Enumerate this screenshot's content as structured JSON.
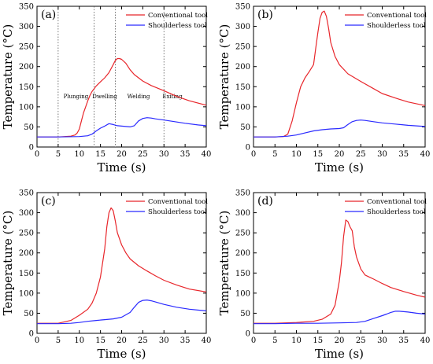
{
  "chart_data": [
    {
      "type": "line",
      "panel_label": "(a)",
      "xlabel": "Time (s)",
      "ylabel": "Temperature (°C)",
      "xlim": [
        0,
        40
      ],
      "ylim": [
        0,
        350
      ],
      "xticks": [
        0,
        5,
        10,
        15,
        20,
        25,
        30,
        35,
        40
      ],
      "yticks": [
        0,
        50,
        100,
        150,
        200,
        250,
        300,
        350
      ],
      "legend_position": "top-right",
      "phase_lines": [
        5,
        13.5,
        18.5,
        30
      ],
      "phases": [
        {
          "label": "Plunging",
          "x": 9.2,
          "y": 125
        },
        {
          "label": "Dwelling",
          "x": 16,
          "y": 125
        },
        {
          "label": "Welding",
          "x": 24,
          "y": 125
        },
        {
          "label": "Exiting",
          "x": 32,
          "y": 125
        }
      ],
      "series": [
        {
          "name": "Conventional tool",
          "color": "#e8262b",
          "x": [
            0,
            5,
            8,
            9,
            9.5,
            10,
            10.5,
            11,
            11.5,
            12,
            12.5,
            13,
            13.5,
            14,
            15,
            16,
            17,
            18,
            18.5,
            19,
            19.5,
            20,
            21,
            22,
            23,
            25,
            27,
            30,
            33,
            36,
            40
          ],
          "y": [
            25,
            25,
            27,
            30,
            35,
            45,
            65,
            85,
            100,
            115,
            128,
            138,
            145,
            152,
            162,
            172,
            185,
            205,
            215,
            220,
            220,
            218,
            208,
            192,
            180,
            164,
            153,
            140,
            126,
            115,
            104
          ]
        },
        {
          "name": "Shoulderless tool",
          "color": "#2a2aff",
          "x": [
            0,
            5,
            10,
            12,
            13,
            14,
            15,
            16,
            17,
            18,
            19,
            20,
            21,
            22,
            23,
            24,
            25,
            26,
            27,
            28,
            30,
            32,
            35,
            38,
            40
          ],
          "y": [
            25,
            25,
            26,
            28,
            32,
            40,
            47,
            52,
            58,
            56,
            53,
            52,
            51,
            50,
            53,
            65,
            71,
            73,
            72,
            70,
            67,
            64,
            59,
            55,
            53
          ]
        }
      ]
    },
    {
      "type": "line",
      "panel_label": "(b)",
      "xlabel": "Time (s)",
      "ylabel": "Temperature (°C)",
      "xlim": [
        0,
        40
      ],
      "ylim": [
        0,
        350
      ],
      "xticks": [
        0,
        5,
        10,
        15,
        20,
        25,
        30,
        35,
        40
      ],
      "yticks": [
        0,
        50,
        100,
        150,
        200,
        250,
        300,
        350
      ],
      "legend_position": "top-right",
      "series": [
        {
          "name": "Conventional tool",
          "color": "#e8262b",
          "x": [
            0,
            5,
            7,
            8,
            9,
            10,
            11,
            12,
            13,
            14,
            14.5,
            15,
            15.5,
            16,
            16.5,
            17,
            17.5,
            18,
            19,
            20,
            22,
            25,
            28,
            30,
            33,
            36,
            40
          ],
          "y": [
            25,
            25,
            26,
            32,
            65,
            110,
            150,
            172,
            188,
            205,
            245,
            285,
            320,
            335,
            338,
            325,
            295,
            260,
            225,
            205,
            182,
            163,
            145,
            133,
            122,
            112,
            103
          ]
        },
        {
          "name": "Shoulderless tool",
          "color": "#2a2aff",
          "x": [
            0,
            5,
            8,
            10,
            12,
            14,
            16,
            18,
            20,
            21,
            22,
            23,
            24,
            25,
            26,
            28,
            30,
            33,
            36,
            40
          ],
          "y": [
            25,
            25,
            27,
            30,
            35,
            40,
            43,
            45,
            46,
            48,
            56,
            63,
            66,
            67,
            66,
            63,
            60,
            57,
            54,
            51
          ]
        }
      ]
    },
    {
      "type": "line",
      "panel_label": "(c)",
      "xlabel": "Time (s)",
      "ylabel": "Temperature (°C)",
      "xlim": [
        0,
        40
      ],
      "ylim": [
        0,
        350
      ],
      "xticks": [
        0,
        5,
        10,
        15,
        20,
        25,
        30,
        35,
        40
      ],
      "yticks": [
        0,
        50,
        100,
        150,
        200,
        250,
        300,
        350
      ],
      "legend_position": "top-right",
      "series": [
        {
          "name": "Conventional tool",
          "color": "#e8262b",
          "x": [
            0,
            5,
            8,
            10,
            12,
            13,
            14,
            15,
            16,
            16.5,
            17,
            17.5,
            18,
            18.5,
            19,
            20,
            21,
            22,
            24,
            26,
            28,
            30,
            33,
            36,
            40
          ],
          "y": [
            25,
            25,
            32,
            45,
            60,
            75,
            100,
            140,
            210,
            265,
            300,
            312,
            305,
            280,
            250,
            220,
            200,
            185,
            168,
            155,
            143,
            132,
            120,
            110,
            103
          ]
        },
        {
          "name": "Shoulderless tool",
          "color": "#2a2aff",
          "x": [
            0,
            5,
            8,
            10,
            12,
            14,
            16,
            18,
            20,
            22,
            23,
            24,
            25,
            26,
            27,
            28,
            30,
            33,
            36,
            40
          ],
          "y": [
            24,
            24,
            25,
            27,
            30,
            32,
            34,
            36,
            40,
            52,
            65,
            77,
            82,
            83,
            81,
            78,
            72,
            65,
            60,
            56
          ]
        }
      ]
    },
    {
      "type": "line",
      "panel_label": "(d)",
      "xlabel": "Time (s)",
      "ylabel": "Temperature (°C)",
      "xlim": [
        0,
        40
      ],
      "ylim": [
        0,
        350
      ],
      "xticks": [
        0,
        5,
        10,
        15,
        20,
        25,
        30,
        35,
        40
      ],
      "yticks": [
        0,
        50,
        100,
        150,
        200,
        250,
        300,
        350
      ],
      "legend_position": "top-right",
      "series": [
        {
          "name": "Conventional tool",
          "color": "#e8262b",
          "x": [
            0,
            5,
            10,
            14,
            16,
            18,
            19,
            19.5,
            20,
            20.5,
            21,
            21.5,
            22,
            22.5,
            23,
            23.5,
            24,
            25,
            26,
            27,
            28,
            30,
            32,
            35,
            38,
            40
          ],
          "y": [
            25,
            25,
            27,
            30,
            35,
            48,
            70,
            100,
            130,
            175,
            240,
            282,
            278,
            265,
            255,
            215,
            190,
            160,
            145,
            140,
            135,
            124,
            114,
            104,
            95,
            90
          ]
        },
        {
          "name": "Shoulderless tool",
          "color": "#2a2aff",
          "x": [
            0,
            5,
            10,
            15,
            20,
            24,
            26,
            28,
            30,
            31,
            32,
            33,
            34,
            35,
            36,
            38,
            40
          ],
          "y": [
            24,
            24,
            25,
            25,
            26,
            27,
            30,
            37,
            44,
            48,
            52,
            55,
            55,
            54,
            53,
            50,
            48
          ]
        }
      ]
    }
  ]
}
